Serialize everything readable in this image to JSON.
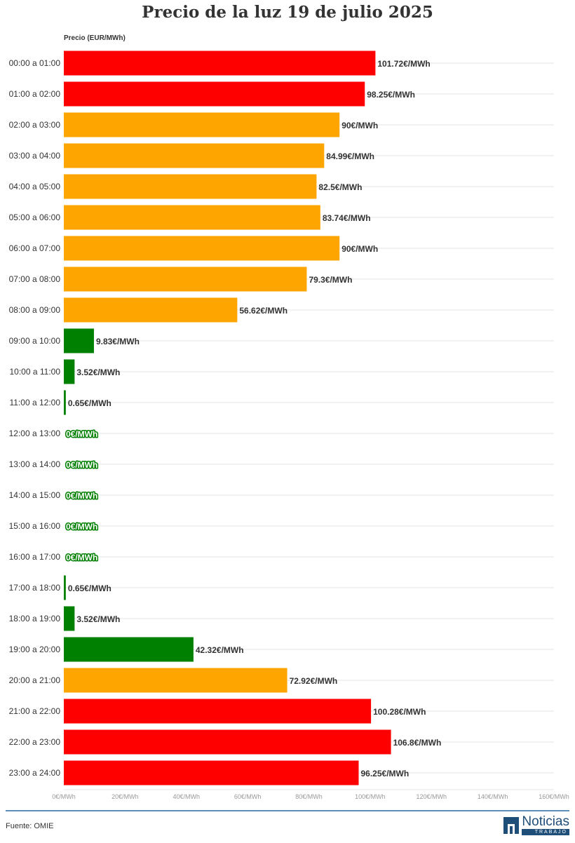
{
  "chart_data": {
    "type": "bar",
    "orientation": "horizontal",
    "title": "Precio de la luz 19 de julio 2025",
    "ylabel": "Precio (EUR/MWh)",
    "xlim": [
      0,
      160
    ],
    "x_ticks": [
      0,
      20,
      40,
      60,
      80,
      100,
      120,
      140,
      160
    ],
    "x_tick_labels": [
      "0€/MWh",
      "20€/MWh",
      "40€/MWh",
      "60€/MWh",
      "80€/MWh",
      "100€/MWh",
      "120€/MWh",
      "140€/MWh",
      "160€/MWh"
    ],
    "grid": true,
    "categories": [
      "00:00 a 01:00",
      "01:00 a 02:00",
      "02:00 a 03:00",
      "03:00 a 04:00",
      "04:00 a 05:00",
      "05:00 a 06:00",
      "06:00 a 07:00",
      "07:00 a 08:00",
      "08:00 a 09:00",
      "09:00 a 10:00",
      "10:00 a 11:00",
      "11:00 a 12:00",
      "12:00 a 13:00",
      "13:00 a 14:00",
      "14:00 a 15:00",
      "15:00 a 16:00",
      "16:00 a 17:00",
      "17:00 a 18:00",
      "18:00 a 19:00",
      "19:00 a 20:00",
      "20:00 a 21:00",
      "21:00 a 22:00",
      "22:00 a 23:00",
      "23:00 a 24:00"
    ],
    "values": [
      101.72,
      98.25,
      90,
      84.99,
      82.5,
      83.74,
      90,
      79.3,
      56.62,
      9.83,
      3.52,
      0.65,
      0,
      0,
      0,
      0,
      0,
      0.65,
      3.52,
      42.32,
      72.92,
      100.28,
      106.8,
      96.25
    ],
    "value_labels": [
      "101.72€/MWh",
      "98.25€/MWh",
      "90€/MWh",
      "84.99€/MWh",
      "82.5€/MWh",
      "83.74€/MWh",
      "90€/MWh",
      "79.3€/MWh",
      "56.62€/MWh",
      "9.83€/MWh",
      "3.52€/MWh",
      "0.65€/MWh",
      "0€/MWh",
      "0€/MWh",
      "0€/MWh",
      "0€/MWh",
      "0€/MWh",
      "0.65€/MWh",
      "3.52€/MWh",
      "42.32€/MWh",
      "72.92€/MWh",
      "100.28€/MWh",
      "106.8€/MWh",
      "96.25€/MWh"
    ],
    "bar_colors": [
      "#ff0000",
      "#ff0000",
      "#ffa500",
      "#ffa500",
      "#ffa500",
      "#ffa500",
      "#ffa500",
      "#ffa500",
      "#ffa500",
      "#008000",
      "#008000",
      "#008000",
      "#008000",
      "#008000",
      "#008000",
      "#008000",
      "#008000",
      "#008000",
      "#008000",
      "#008000",
      "#ffa500",
      "#ff0000",
      "#ff0000",
      "#ff0000"
    ]
  },
  "footer": {
    "source": "Fuente: OMIE",
    "brand_name": "Noticias",
    "brand_sub": "TRABAJO",
    "brand_color": "#1f4e79"
  }
}
